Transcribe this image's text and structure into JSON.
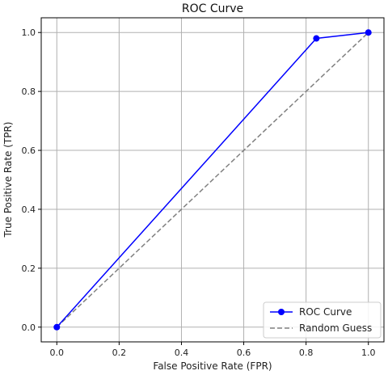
{
  "chart_data": {
    "type": "line",
    "title": "ROC Curve",
    "xlabel": "False Positive Rate (FPR)",
    "ylabel": "True Positive Rate (TPR)",
    "xlim": [
      -0.05,
      1.05
    ],
    "ylim": [
      -0.05,
      1.05
    ],
    "xticks": [
      "0.0",
      "0.2",
      "0.4",
      "0.6",
      "0.8",
      "1.0"
    ],
    "yticks": [
      "0.0",
      "0.2",
      "0.4",
      "0.6",
      "0.8",
      "1.0"
    ],
    "grid": true,
    "legend_position": "bottom-right",
    "series": [
      {
        "name": "ROC Curve",
        "style": "solid",
        "marker": "circle",
        "color": "#0000ff",
        "x": [
          0.0,
          0.833,
          1.0
        ],
        "y": [
          0.0,
          0.98,
          1.0
        ]
      },
      {
        "name": "Random Guess",
        "style": "dashed",
        "marker": "none",
        "color": "#808080",
        "x": [
          0.0,
          1.0
        ],
        "y": [
          0.0,
          1.0
        ]
      }
    ]
  }
}
